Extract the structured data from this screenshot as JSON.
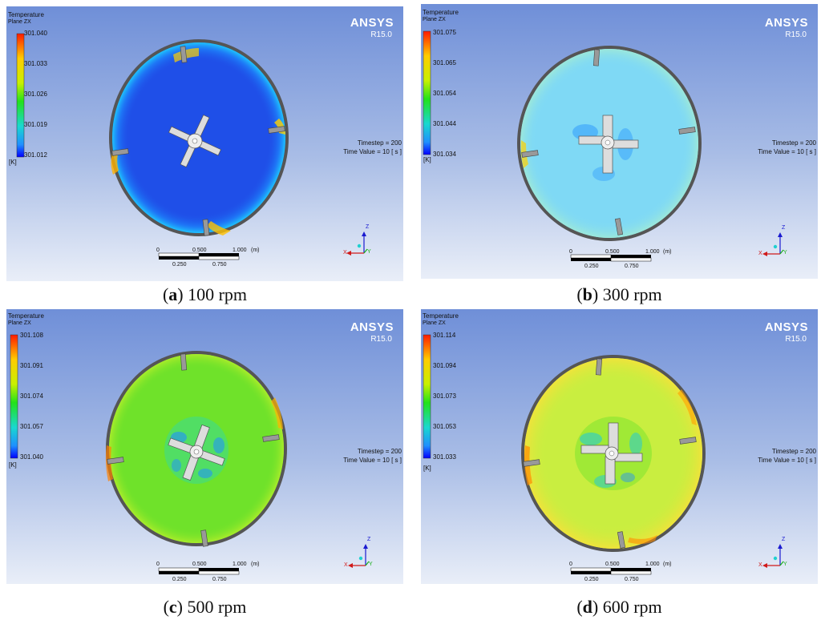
{
  "common": {
    "legend_title": "Temperature",
    "legend_plane": "Plane ZX",
    "unit": "[K]",
    "brand": "ANSYS",
    "version": "R15.0",
    "timestep": "Timestep = 200",
    "time_value": "Time Value = 10 [ s ]",
    "scale_0": "0",
    "scale_250": "0.250",
    "scale_500": "0.500",
    "scale_750": "0.750",
    "scale_1000": "1.000",
    "scale_unit": "(m)",
    "axis_z": "Z",
    "axis_x": "X",
    "axis_y": "Y"
  },
  "panels": [
    {
      "letter": "a",
      "caption": " 100 rpm",
      "ticks": [
        "301.040",
        "301.033",
        "301.026",
        "301.019",
        "301.012"
      ],
      "field_color": "#1f4fe8"
    },
    {
      "letter": "b",
      "caption": " 300 rpm",
      "ticks": [
        "301.075",
        "301.065",
        "301.054",
        "301.044",
        "301.034"
      ],
      "field_color": "#7fd9f5"
    },
    {
      "letter": "c",
      "caption": " 500 rpm",
      "ticks": [
        "301.108",
        "301.091",
        "301.074",
        "301.057",
        "301.040"
      ],
      "field_color": "#6fe22a"
    },
    {
      "letter": "d",
      "caption": " 600 rpm",
      "ticks": [
        "301.114",
        "301.094",
        "301.073",
        "301.053",
        "301.033"
      ],
      "field_color": "#c9ee40"
    }
  ]
}
